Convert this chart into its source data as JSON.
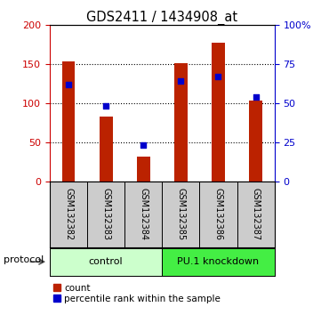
{
  "title": "GDS2411 / 1434908_at",
  "samples": [
    "GSM132382",
    "GSM132383",
    "GSM132384",
    "GSM132385",
    "GSM132386",
    "GSM132387"
  ],
  "counts": [
    153,
    83,
    32,
    151,
    178,
    103
  ],
  "percentiles": [
    62,
    48,
    23,
    64,
    67,
    54
  ],
  "left_ylim": [
    0,
    200
  ],
  "right_ylim": [
    0,
    100
  ],
  "left_yticks": [
    0,
    50,
    100,
    150,
    200
  ],
  "right_yticks": [
    0,
    25,
    50,
    75,
    100
  ],
  "right_yticklabels": [
    "0",
    "25",
    "50",
    "75",
    "100%"
  ],
  "bar_color": "#BB2200",
  "marker_color": "#0000CC",
  "groups": [
    {
      "label": "control",
      "start": 0,
      "end": 3,
      "color": "#CCFFCC"
    },
    {
      "label": "PU.1 knockdown",
      "start": 3,
      "end": 6,
      "color": "#44EE44"
    }
  ],
  "protocol_label": "protocol",
  "legend_items": [
    {
      "color": "#BB2200",
      "marker": "s",
      "label": "count"
    },
    {
      "color": "#0000CC",
      "marker": "s",
      "label": "percentile rank within the sample"
    }
  ],
  "grid_yticks": [
    50,
    100,
    150
  ],
  "left_axis_color": "#CC0000",
  "right_axis_color": "#0000CC",
  "sample_box_color": "#CCCCCC",
  "bar_width": 0.35
}
